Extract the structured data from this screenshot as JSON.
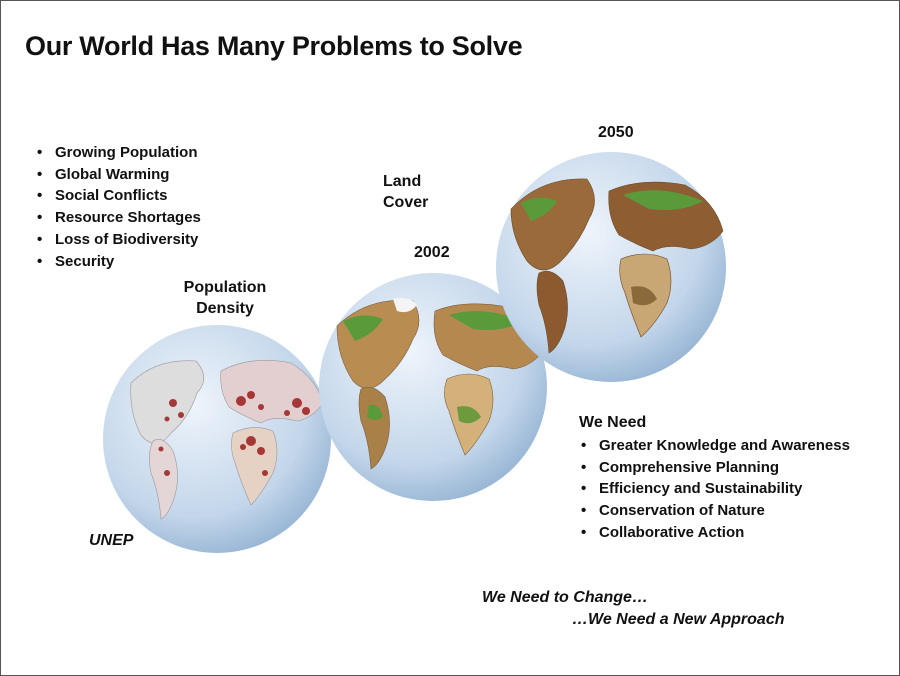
{
  "title": "Our World Has Many Problems to Solve",
  "problems": [
    "Growing Population",
    "Global Warming",
    "Social Conflicts",
    "Resource Shortages",
    "Loss of Biodiversity",
    "Security"
  ],
  "globes": {
    "population_label": "Population Density",
    "land_cover_label": "Land Cover",
    "year_2002": "2002",
    "year_2050": "2050"
  },
  "source": "UNEP",
  "needs": {
    "heading": "We Need",
    "items": [
      "Greater Knowledge and Awareness",
      "Comprehensive Planning",
      "Efficiency and Sustainability",
      "Conservation of Nature",
      "Collaborative Action"
    ]
  },
  "closing": {
    "line1": "We Need to Change…",
    "line2": "…We Need a New Approach"
  },
  "colors": {
    "ocean": "#b9cfe6",
    "population": "#9b1d1d",
    "land_arid": "#c8a26a",
    "vegetation": "#5b9a3a"
  }
}
